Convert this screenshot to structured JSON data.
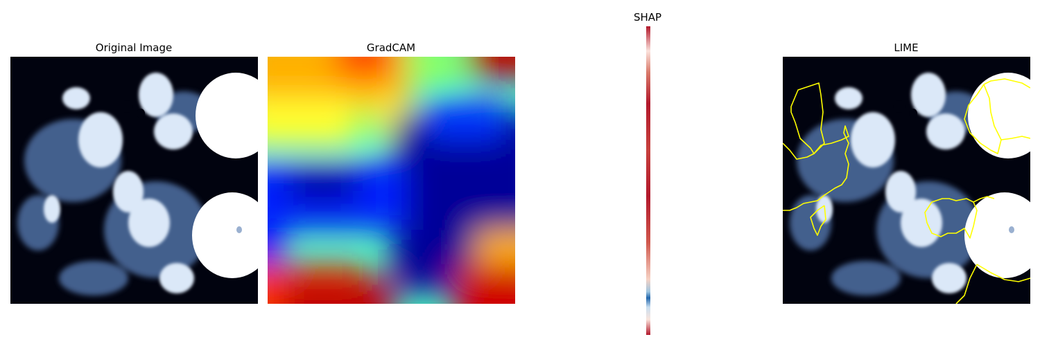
{
  "panels": {
    "original": {
      "title": "Original Image"
    },
    "gradcam": {
      "title": "GradCAM"
    },
    "shap": {
      "title": "SHAP"
    },
    "lime": {
      "title": "LIME"
    }
  },
  "colors": {
    "background": "#ffffff",
    "lime_outline": "#ffff00",
    "shap_positive": "#b2182b",
    "shap_negative": "#2166ac"
  }
}
